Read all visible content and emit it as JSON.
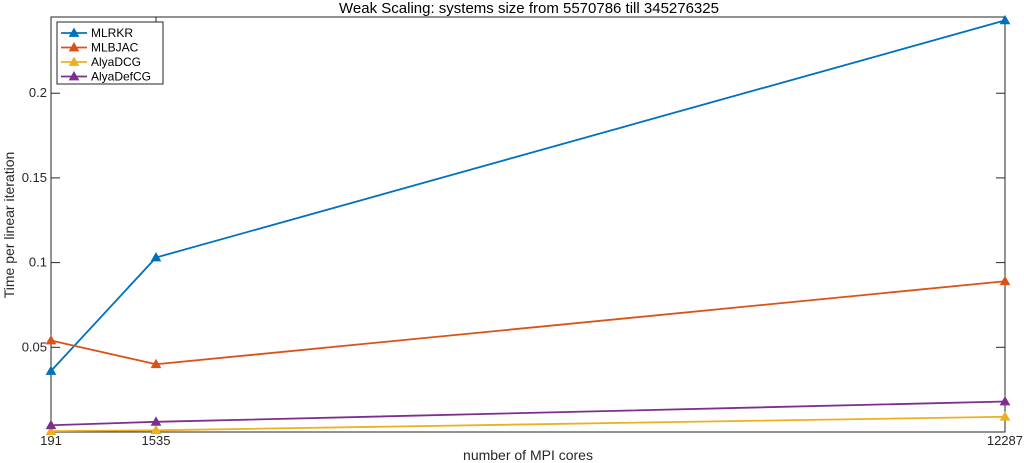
{
  "chart_data": {
    "type": "line",
    "title": "Weak Scaling: systems size from 5570786 till 345276325",
    "xlabel": "number of MPI cores",
    "ylabel": "Time per linear iteration",
    "x": [
      191,
      1535,
      12287
    ],
    "x_tick_labels": [
      "191",
      "1535",
      "12287"
    ],
    "xlim": [
      191,
      12287
    ],
    "ylim": [
      0,
      0.245
    ],
    "y_ticks": [
      0.05,
      0.1,
      0.15,
      0.2
    ],
    "y_tick_labels": [
      "0.05",
      "0.1",
      "0.15",
      "0.2"
    ],
    "grid": false,
    "legend_position": "top-left",
    "series": [
      {
        "name": "MLRKR",
        "values": [
          0.036,
          0.103,
          0.243
        ],
        "color": "#0072BD",
        "marker": "triangle"
      },
      {
        "name": "MLBJAC",
        "values": [
          0.054,
          0.04,
          0.089
        ],
        "color": "#D95319",
        "marker": "triangle"
      },
      {
        "name": "AlyaDCG",
        "values": [
          0.0005,
          0.001,
          0.009
        ],
        "color": "#EDB120",
        "marker": "triangle"
      },
      {
        "name": "AlyaDefCG",
        "values": [
          0.004,
          0.006,
          0.018
        ],
        "color": "#7E2F8E",
        "marker": "triangle"
      }
    ]
  }
}
